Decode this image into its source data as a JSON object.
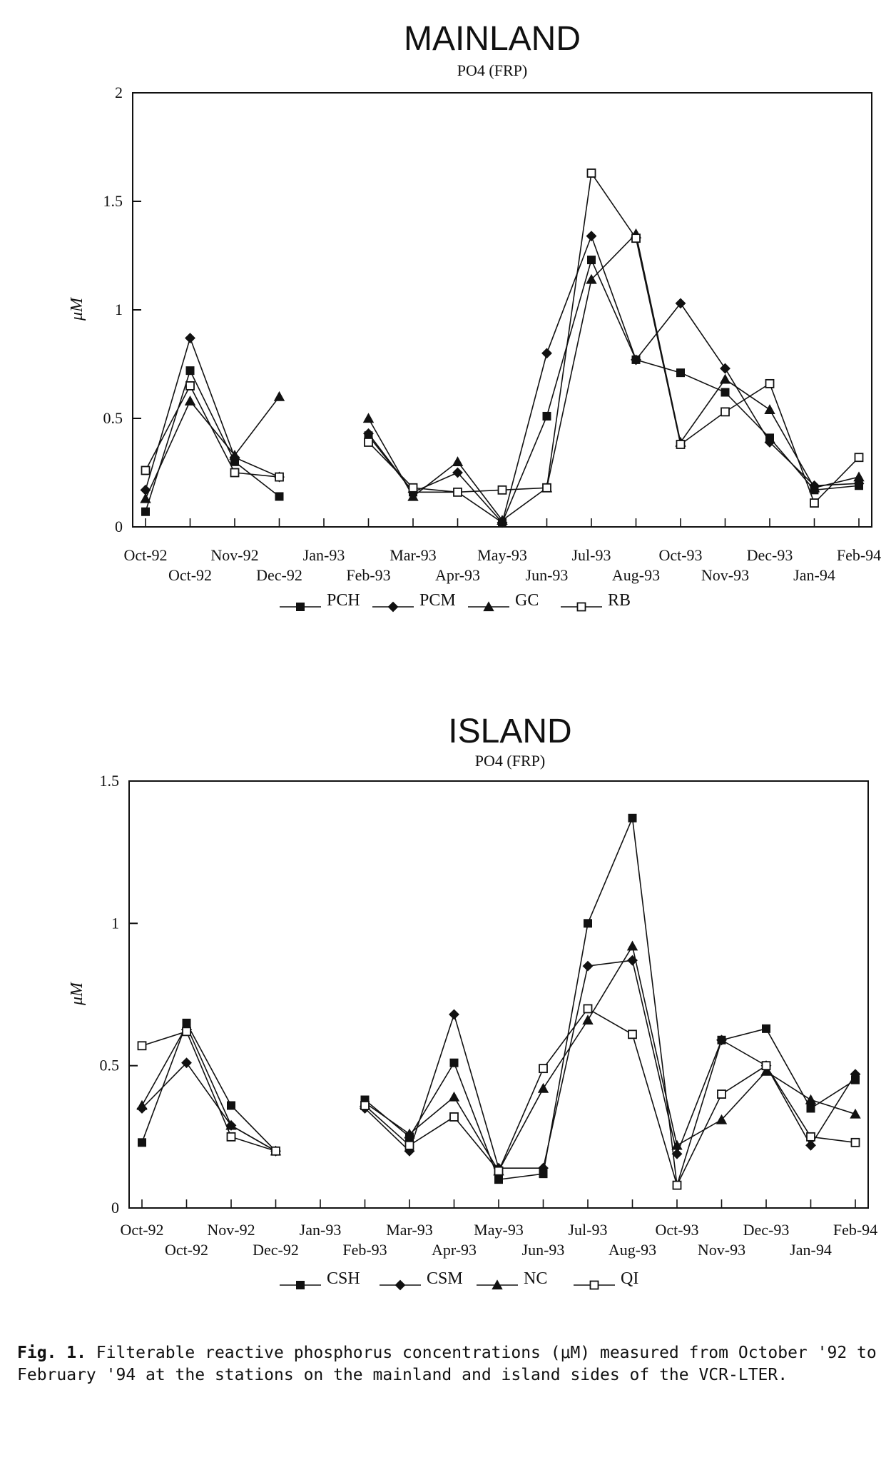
{
  "chart_data": [
    {
      "type": "line",
      "title": "MAINLAND",
      "subtitle": "PO4 (FRP)",
      "ylabel": "μM",
      "xlabel": "",
      "ylim": [
        0,
        2
      ],
      "yticks": [
        "0",
        "0.5",
        "1",
        "1.5",
        "2"
      ],
      "ytick_values": [
        0,
        0.5,
        1,
        1.5,
        2
      ],
      "categories": [
        "Oct-92",
        "Oct-92",
        "Nov-92",
        "Dec-92",
        "Jan-93",
        "Feb-93",
        "Mar-93",
        "Apr-93",
        "May-93",
        "Jun-93",
        "Jul-93",
        "Aug-93",
        "Oct-93",
        "Nov-93",
        "Dec-93",
        "Jan-94",
        "Feb-94"
      ],
      "x_labels_top": [
        "Oct-92",
        "Nov-92",
        "Jan-93",
        "Mar-93",
        "May-93",
        "Jul-93",
        "Oct-93",
        "Dec-93",
        "Feb-94"
      ],
      "x_labels_bottom": [
        "Oct-92",
        "Dec-92",
        "Feb-93",
        "Apr-93",
        "Jun-93",
        "Aug-93",
        "Nov-93",
        "Jan-94"
      ],
      "grid": false,
      "legend_position": "bottom",
      "series": [
        {
          "name": "PCH",
          "marker": "filled-square",
          "values": [
            0.07,
            0.72,
            0.3,
            0.14,
            null,
            0.42,
            0.16,
            0.16,
            0.02,
            0.51,
            1.23,
            0.77,
            0.71,
            0.62,
            0.41,
            0.17,
            0.19
          ]
        },
        {
          "name": "PCM",
          "marker": "filled-diamond",
          "values": [
            0.17,
            0.87,
            0.32,
            0.23,
            null,
            0.43,
            0.16,
            0.25,
            0.02,
            0.8,
            1.34,
            0.77,
            1.03,
            0.73,
            0.39,
            0.19,
            0.2
          ]
        },
        {
          "name": "GC",
          "marker": "filled-triangle",
          "values": [
            0.13,
            0.58,
            0.33,
            0.6,
            null,
            0.5,
            0.14,
            0.3,
            0.03,
            0.18,
            1.14,
            1.35,
            0.39,
            0.68,
            0.54,
            0.18,
            0.23
          ]
        },
        {
          "name": "RB",
          "marker": "open-square",
          "values": [
            0.26,
            0.65,
            0.25,
            0.23,
            null,
            0.39,
            0.18,
            0.16,
            0.17,
            0.18,
            1.63,
            1.33,
            0.38,
            0.53,
            0.66,
            0.11,
            0.32
          ]
        }
      ]
    },
    {
      "type": "line",
      "title": "ISLAND",
      "subtitle": "PO4 (FRP)",
      "ylabel": "μM",
      "xlabel": "",
      "ylim": [
        0,
        1.5
      ],
      "yticks": [
        "0",
        "0.5",
        "1",
        "1.5"
      ],
      "ytick_values": [
        0,
        0.5,
        1,
        1.5
      ],
      "categories": [
        "Oct-92",
        "Oct-92",
        "Nov-92",
        "Dec-92",
        "Jan-93",
        "Feb-93",
        "Mar-93",
        "Apr-93",
        "May-93",
        "Jun-93",
        "Jul-93",
        "Aug-93",
        "Oct-93",
        "Nov-93",
        "Dec-93",
        "Jan-94",
        "Feb-94"
      ],
      "x_labels_top": [
        "Oct-92",
        "Nov-92",
        "Jan-93",
        "Mar-93",
        "May-93",
        "Jul-93",
        "Oct-93",
        "Dec-93",
        "Feb-94"
      ],
      "x_labels_bottom": [
        "Oct-92",
        "Dec-92",
        "Feb-93",
        "Apr-93",
        "Jun-93",
        "Aug-93",
        "Nov-93",
        "Jan-94"
      ],
      "grid": false,
      "legend_position": "bottom",
      "series": [
        {
          "name": "CSH",
          "marker": "filled-square",
          "values": [
            0.23,
            0.65,
            0.36,
            0.2,
            null,
            0.38,
            0.25,
            0.51,
            0.1,
            0.12,
            1.0,
            1.37,
            0.08,
            0.59,
            0.63,
            0.35,
            0.45
          ]
        },
        {
          "name": "CSM",
          "marker": "filled-diamond",
          "values": [
            0.35,
            0.51,
            0.29,
            0.2,
            null,
            0.35,
            0.2,
            0.68,
            0.14,
            0.14,
            0.85,
            0.87,
            0.19,
            0.59,
            0.5,
            0.22,
            0.47
          ]
        },
        {
          "name": "NC",
          "marker": "filled-triangle",
          "values": [
            0.36,
            0.64,
            0.29,
            0.2,
            null,
            0.37,
            0.26,
            0.39,
            0.13,
            0.42,
            0.66,
            0.92,
            0.22,
            0.31,
            0.48,
            0.38,
            0.33
          ]
        },
        {
          "name": "QI",
          "marker": "open-square",
          "values": [
            0.57,
            0.62,
            0.25,
            0.2,
            null,
            0.36,
            0.22,
            0.32,
            0.13,
            0.49,
            0.7,
            0.61,
            0.08,
            0.4,
            0.5,
            0.25,
            0.23
          ]
        }
      ]
    }
  ],
  "caption": {
    "label": "Fig. 1.",
    "text": " Filterable reactive phosphorus concentrations (μM) measured from October '92 to February '94 at the stations on the mainland and island sides of the VCR-LTER."
  }
}
